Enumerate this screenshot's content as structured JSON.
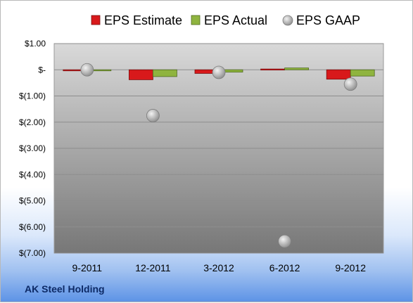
{
  "chart_data": {
    "type": "bar",
    "categories": [
      "9-2011",
      "12-2011",
      "3-2012",
      "6-2012",
      "9-2012"
    ],
    "series": [
      {
        "name": "EPS Estimate",
        "kind": "bar",
        "color": "#d8191b",
        "values": [
          -0.02,
          -0.38,
          -0.14,
          0.03,
          -0.36
        ]
      },
      {
        "name": "EPS Actual",
        "kind": "bar",
        "color": "#8fb43f",
        "values": [
          0.0,
          -0.26,
          -0.09,
          0.07,
          -0.24
        ]
      },
      {
        "name": "EPS GAAP",
        "kind": "point",
        "color": "#b9b9b9",
        "values": [
          0.0,
          -1.75,
          -0.1,
          -6.55,
          -0.55
        ]
      }
    ],
    "ylim": [
      -7,
      1
    ],
    "yticks": [
      1,
      0,
      -1,
      -2,
      -3,
      -4,
      -5,
      -6,
      -7
    ],
    "ytick_labels": [
      "$1.00",
      "$-",
      "$(1.00)",
      "$(2.00)",
      "$(3.00)",
      "$(4.00)",
      "$(5.00)",
      "$(6.00)",
      "$(7.00)"
    ],
    "legend_position": "top",
    "grid": true
  },
  "company_label": "AK Steel Holding"
}
